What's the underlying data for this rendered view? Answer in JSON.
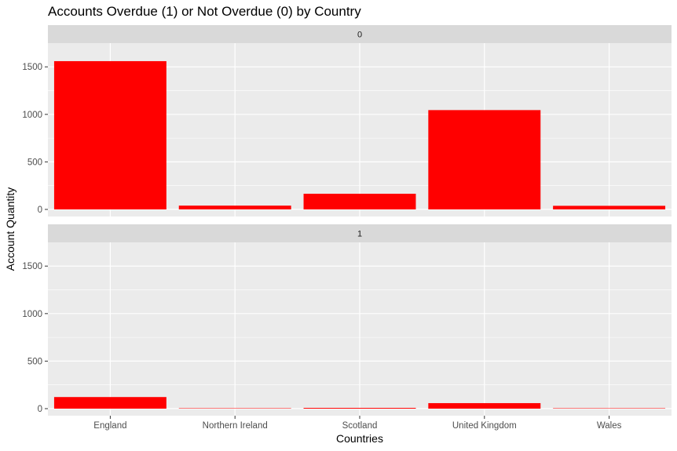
{
  "chart_data": {
    "type": "bar",
    "title": "Accounts Overdue (1) or Not Overdue (0) by Country",
    "xlabel": "Countries",
    "ylabel": "Account Quantity",
    "categories": [
      "England",
      "Northern Ireland",
      "Scotland",
      "United Kingdom",
      "Wales"
    ],
    "ylim": [
      0,
      1700
    ],
    "yticks": [
      0,
      500,
      1000,
      1500
    ],
    "grid": true,
    "bar_color": "#ff0000",
    "panel_background": "#ebebeb",
    "strip_background": "#d9d9d9",
    "facets": [
      {
        "label": "0",
        "values": [
          1560,
          40,
          165,
          1045,
          38
        ]
      },
      {
        "label": "1",
        "values": [
          122,
          2,
          8,
          58,
          3
        ]
      }
    ]
  }
}
